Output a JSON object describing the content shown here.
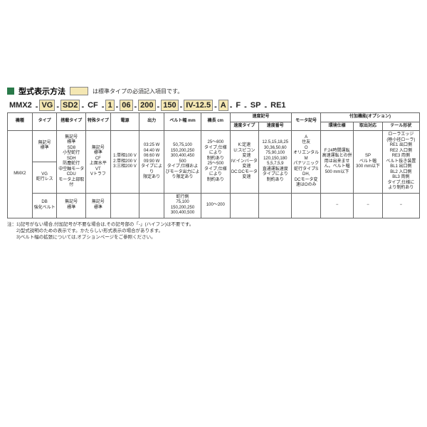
{
  "accent_color": "#2a7a4a",
  "legend_fill": "#f4e7b3",
  "title": "型式表示方法",
  "legend_text": "は標準タイプの必須記入項目です。",
  "model_segments": [
    {
      "text": "MMX2",
      "hl": false
    },
    {
      "text": "VG",
      "hl": true
    },
    {
      "text": "SD2",
      "hl": true
    },
    {
      "text": "CF",
      "hl": false
    },
    {
      "text": "1",
      "hl": true
    },
    {
      "text": "06",
      "hl": true
    },
    {
      "text": "200",
      "hl": true
    },
    {
      "text": "150",
      "hl": true
    },
    {
      "text": "IV-12.5",
      "hl": true
    },
    {
      "text": "A",
      "hl": true
    },
    {
      "text": "F",
      "hl": false
    },
    {
      "text": "SP",
      "hl": false
    },
    {
      "text": "RE1",
      "hl": false
    }
  ],
  "headers_row1": [
    "機種",
    "タイプ",
    "搭載タイプ",
    "特殊タイプ",
    "電源",
    "出力",
    "ベルト幅 mm",
    "機長 cm",
    "速度記号",
    "",
    "モータ記号",
    "付加機能(オプション)",
    "",
    ""
  ],
  "headers_row2": [
    "",
    "",
    "",
    "",
    "",
    "",
    "",
    "",
    "速度タイプ",
    "速度番号",
    "",
    "環境仕様",
    "取出対応",
    "テール形状"
  ],
  "rows": [
    [
      "MMX2",
      "無記号\n標準",
      "無記号\n標準\nSD8\n小型蛇行\nSDH\n防塵蛇行\n中空軸モータ\nCDU\nモータ上部取付",
      "無記号\n標準\nCF\n上面水平\nVT\nVトラフ",
      "1:単相100 V\n2:単相200 V\n3:三相200 V",
      "03:25 W\n04:40 W\n06:60 W\n09:90 W\nタイプにより\n限定あり",
      "50,75,100\n150,200,250\n300,400,450\n500\nタイプ,仕様およびモータ出力により限定あり",
      "25〜800\nタイプ,仕様\nにより\n制約あり\n25〜500\nタイプ,仕様\nにより\n制約あり",
      "K:定速\nU:スピコン\n　変速\nIV:インバータ\n　変速\nDC:DCモータ\n　変速",
      "12.5,15,18,25\n30,36,50,60\n75,90,100\n120,150,180\n5,5,7,5,9\n直通運転速度\nタイプにより\n制約あり",
      "A\n住友\nO\nオリエンタル\nM\nパナソニック\n蛇行タイプSDH,\nDCモータ変速はOのみ",
      "F:24時間運転\n高速運転との併用は出来ません。ベルト幅\n500 mm以下",
      "SP\nベルト幅\n300 mm以下",
      "ローラエッジ\n(極小径ローラ)\nRE1 出口側\nRE2 入口側\nRE3 両側\nベルト抜き装置\nBL1 出口側\nBL2 入口側\nBL3 両側\nタイプ,仕様に\nより制約あり"
    ],
    [
      "",
      "VG\n蛇行レス",
      "",
      "",
      "",
      "",
      "",
      "",
      "",
      "",
      "",
      "",
      "",
      ""
    ],
    [
      "",
      "DB\n強化ベルト",
      "無記号\n標準",
      "無記号\n標準",
      "",
      "",
      "蛇行側\n75,100\n150,200,250\n300,400,500",
      "100〜200",
      "",
      "",
      "",
      "−",
      "−",
      "−"
    ]
  ],
  "notes": [
    "注：1)記号がない場合,付加記号が不要な場合は,その記号部の「-」(ハイフン)は不要です。",
    "　　2)型式説明のための表示です。かたらしい形式表示の場合があります。",
    "　　3)ベルト幅の拡張については,オプションページをご参照ください。"
  ],
  "col_widths": [
    "6%",
    "6%",
    "7%",
    "6%",
    "7%",
    "6%",
    "9%",
    "7%",
    "7%",
    "8%",
    "7%",
    "8%",
    "7%",
    "9%"
  ]
}
